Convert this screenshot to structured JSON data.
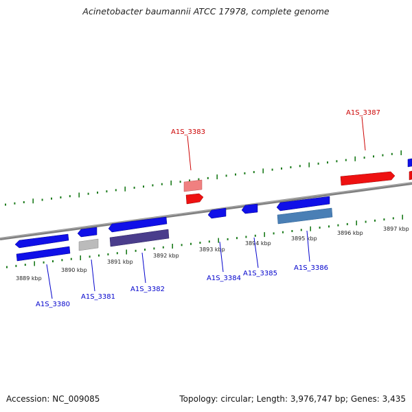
{
  "title": "Acinetobacter baumannii ATCC 17978, complete genome",
  "footer": {
    "accession": "Accession: NC_009085",
    "stats": "Topology: circular; Length: 3,976,747 bp; Genes: 3,435"
  },
  "colors": {
    "forward_cds": "#1010e8",
    "reverse_cds": "#1010e8",
    "highlight": "#ee1111",
    "highlight_light": "#f08080",
    "grey_feature": "#bbbbbb",
    "navy_feature": "#4a3d8c",
    "steel_feature": "#4a7fb5",
    "backbone": "#808080",
    "ticks": "#1a7a1a",
    "label_blue": "#0000cc",
    "label_red": "#cc0000"
  },
  "scale_labels": [
    "3889 kbp",
    "3890 kbp",
    "3891 kbp",
    "3892 kbp",
    "3893 kbp",
    "3894 kbp",
    "3895 kbp",
    "3896 kbp",
    "3897 kbp"
  ],
  "gene_labels": [
    {
      "text": "A1S_3380",
      "color": "blue"
    },
    {
      "text": "A1S_3381",
      "color": "blue"
    },
    {
      "text": "A1S_3382",
      "color": "blue"
    },
    {
      "text": "A1S_3383",
      "color": "red"
    },
    {
      "text": "A1S_3384",
      "color": "blue"
    },
    {
      "text": "A1S_3385",
      "color": "blue"
    },
    {
      "text": "A1S_3386",
      "color": "blue"
    },
    {
      "text": "A1S_3387",
      "color": "red"
    }
  ]
}
